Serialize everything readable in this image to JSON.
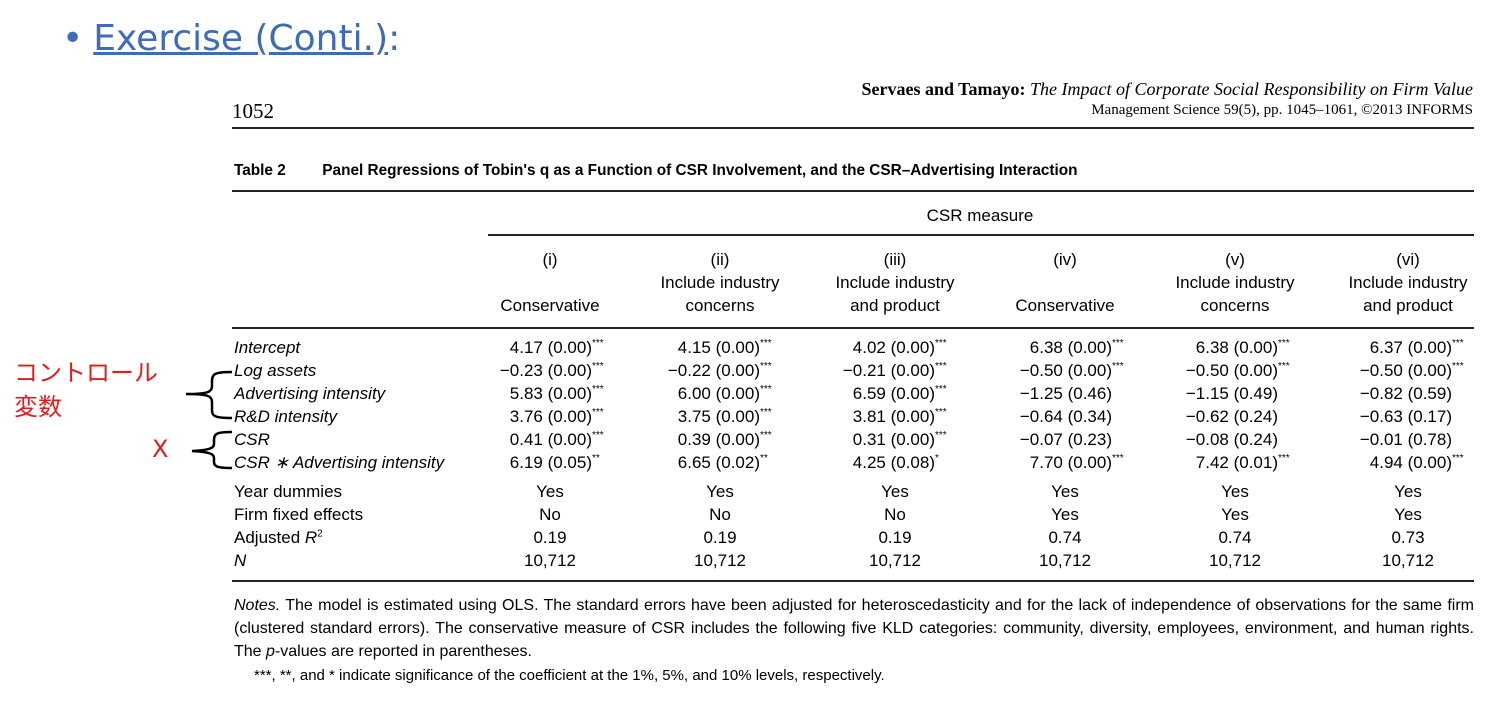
{
  "slide": {
    "bullet": "•",
    "title_link": "Exercise (Conti.)",
    "title_suffix": ":"
  },
  "annotations": {
    "control_vars": "コントロール変数",
    "x_label": "X",
    "color": "#e31b1b"
  },
  "paper": {
    "page_number": "1052",
    "authors": "Servaes and Tamayo:",
    "article_title": "The Impact of Corporate Social Responsibility on Firm Value",
    "journal": "Management Science 59(5), pp. 1045–1061, ©2013 INFORMS"
  },
  "table": {
    "number": "Table 2",
    "caption": "Panel Regressions of Tobin's q as a Function of CSR Involvement, and the CSR–Advertising Interaction",
    "group_header": "CSR measure",
    "columns": [
      {
        "num": "(i)",
        "line1": "",
        "line2": "Conservative"
      },
      {
        "num": "(ii)",
        "line1": "Include industry",
        "line2": "concerns"
      },
      {
        "num": "(iii)",
        "line1": "Include industry",
        "line2": "and product"
      },
      {
        "num": "(iv)",
        "line1": "",
        "line2": "Conservative"
      },
      {
        "num": "(v)",
        "line1": "Include industry",
        "line2": "concerns"
      },
      {
        "num": "(vi)",
        "line1": "Include industry",
        "line2": "and product"
      }
    ],
    "coef_rows": [
      {
        "label": "Intercept",
        "cells": [
          [
            "4.17 (0.00)",
            "***"
          ],
          [
            "4.15 (0.00)",
            "***"
          ],
          [
            "4.02 (0.00)",
            "***"
          ],
          [
            "6.38 (0.00)",
            "***"
          ],
          [
            "6.38 (0.00)",
            "***"
          ],
          [
            "6.37 (0.00)",
            "***"
          ]
        ]
      },
      {
        "label": "Log assets",
        "cells": [
          [
            "−0.23 (0.00)",
            "***"
          ],
          [
            "−0.22 (0.00)",
            "***"
          ],
          [
            "−0.21 (0.00)",
            "***"
          ],
          [
            "−0.50 (0.00)",
            "***"
          ],
          [
            "−0.50 (0.00)",
            "***"
          ],
          [
            "−0.50 (0.00)",
            "***"
          ]
        ]
      },
      {
        "label": "Advertising intensity",
        "cells": [
          [
            "5.83 (0.00)",
            "***"
          ],
          [
            "6.00 (0.00)",
            "***"
          ],
          [
            "6.59 (0.00)",
            "***"
          ],
          [
            "−1.25 (0.46)",
            ""
          ],
          [
            "−1.15 (0.49)",
            ""
          ],
          [
            "−0.82 (0.59)",
            ""
          ]
        ]
      },
      {
        "label": "R&D intensity",
        "cells": [
          [
            "3.76 (0.00)",
            "***"
          ],
          [
            "3.75 (0.00)",
            "***"
          ],
          [
            "3.81 (0.00)",
            "***"
          ],
          [
            "−0.64 (0.34)",
            ""
          ],
          [
            "−0.62 (0.24)",
            ""
          ],
          [
            "−0.63 (0.17)",
            ""
          ]
        ]
      },
      {
        "label": "CSR",
        "cells": [
          [
            "0.41 (0.00)",
            "***"
          ],
          [
            "0.39 (0.00)",
            "***"
          ],
          [
            "0.31 (0.00)",
            "***"
          ],
          [
            "−0.07 (0.23)",
            ""
          ],
          [
            "−0.08 (0.24)",
            ""
          ],
          [
            "−0.01 (0.78)",
            ""
          ]
        ]
      },
      {
        "label": "CSR ∗ Advertising intensity",
        "cells": [
          [
            "6.19 (0.05)",
            "**"
          ],
          [
            "6.65 (0.02)",
            "**"
          ],
          [
            "4.25 (0.08)",
            "*"
          ],
          [
            "7.70 (0.00)",
            "***"
          ],
          [
            "7.42 (0.01)",
            "***"
          ],
          [
            "4.94 (0.00)",
            "***"
          ]
        ]
      }
    ],
    "stat_rows": [
      {
        "label": "Year dummies",
        "cells": [
          "Yes",
          "Yes",
          "Yes",
          "Yes",
          "Yes",
          "Yes"
        ]
      },
      {
        "label": "Firm fixed effects",
        "cells": [
          "No",
          "No",
          "No",
          "Yes",
          "Yes",
          "Yes"
        ]
      },
      {
        "label": "Adjusted R",
        "sup": "2",
        "cells": [
          "0.19",
          "0.19",
          "0.19",
          "0.74",
          "0.74",
          "0.73"
        ]
      },
      {
        "label": "N",
        "cells": [
          "10,712",
          "10,712",
          "10,712",
          "10,712",
          "10,712",
          "10,712"
        ]
      }
    ],
    "notes_lead": "Notes.",
    "notes_a": " The model is estimated using OLS. The standard errors have been adjusted for heteroscedasticity and for the lack of independence of observations for the same firm (clustered standard errors). The conservative measure of CSR includes the following five KLD categories: community, diversity, employees, environment, and human rights. The ",
    "notes_p": "p",
    "notes_b": "-values are reported in parentheses.",
    "footnote": "***, **, and * indicate significance of the coefficient at the 1%, 5%, and 10% levels, respectively."
  }
}
